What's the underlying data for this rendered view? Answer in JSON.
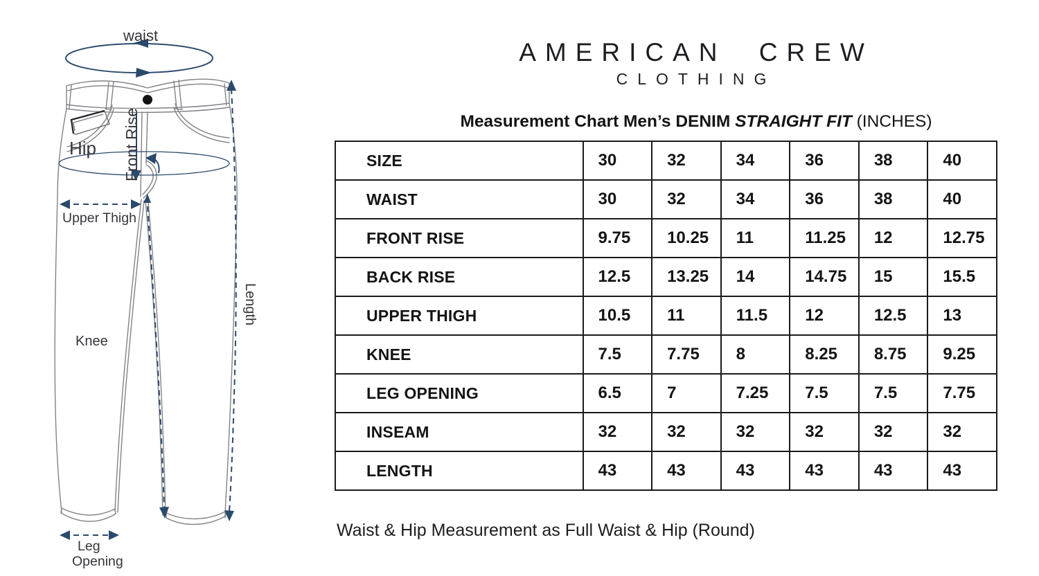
{
  "brand": {
    "name": "AMERICAN CREW",
    "type": "CLOTHING"
  },
  "title": {
    "prefix": "Measurement Chart Men’s DENIM ",
    "emphasis": "STRAIGHT FIT",
    "suffix": " (INCHES)"
  },
  "footnote": "Waist & Hip Measurement as Full Waist & Hip (Round)",
  "diagram": {
    "labels": {
      "waist": "waist",
      "hip": "Hip",
      "front_rise": "Front Rise",
      "upper_thigh": "Upper Thigh",
      "knee": "Knee",
      "length": "Length",
      "leg_opening_1": "Leg",
      "leg_opening_2": "Opening"
    },
    "colors": {
      "arrow": "#2a4a6b",
      "outline": "#828287",
      "label": "#35353a"
    }
  },
  "chart_data": {
    "type": "table",
    "title": "Measurement Chart Men's DENIM STRAIGHT FIT (INCHES)",
    "unit": "inches",
    "columns": [
      "SIZE",
      "30",
      "32",
      "34",
      "36",
      "38",
      "40"
    ],
    "rows": [
      {
        "label": "SIZE",
        "values": [
          30,
          32,
          34,
          36,
          38,
          40
        ]
      },
      {
        "label": "WAIST",
        "values": [
          30,
          32,
          34,
          36,
          38,
          40
        ]
      },
      {
        "label": "FRONT RISE",
        "values": [
          9.75,
          10.25,
          11,
          11.25,
          12,
          12.75
        ]
      },
      {
        "label": "BACK RISE",
        "values": [
          12.5,
          13.25,
          14,
          14.75,
          15,
          15.5
        ]
      },
      {
        "label": "UPPER THIGH",
        "values": [
          10.5,
          11,
          11.5,
          12,
          12.5,
          13
        ]
      },
      {
        "label": "KNEE",
        "values": [
          7.5,
          7.75,
          8,
          8.25,
          8.75,
          9.25
        ]
      },
      {
        "label": "LEG OPENING",
        "values": [
          6.5,
          7,
          7.25,
          7.5,
          7.5,
          7.75
        ]
      },
      {
        "label": "INSEAM",
        "values": [
          32,
          32,
          32,
          32,
          32,
          32
        ]
      },
      {
        "label": "LENGTH",
        "values": [
          43,
          43,
          43,
          43,
          43,
          43
        ]
      }
    ]
  }
}
